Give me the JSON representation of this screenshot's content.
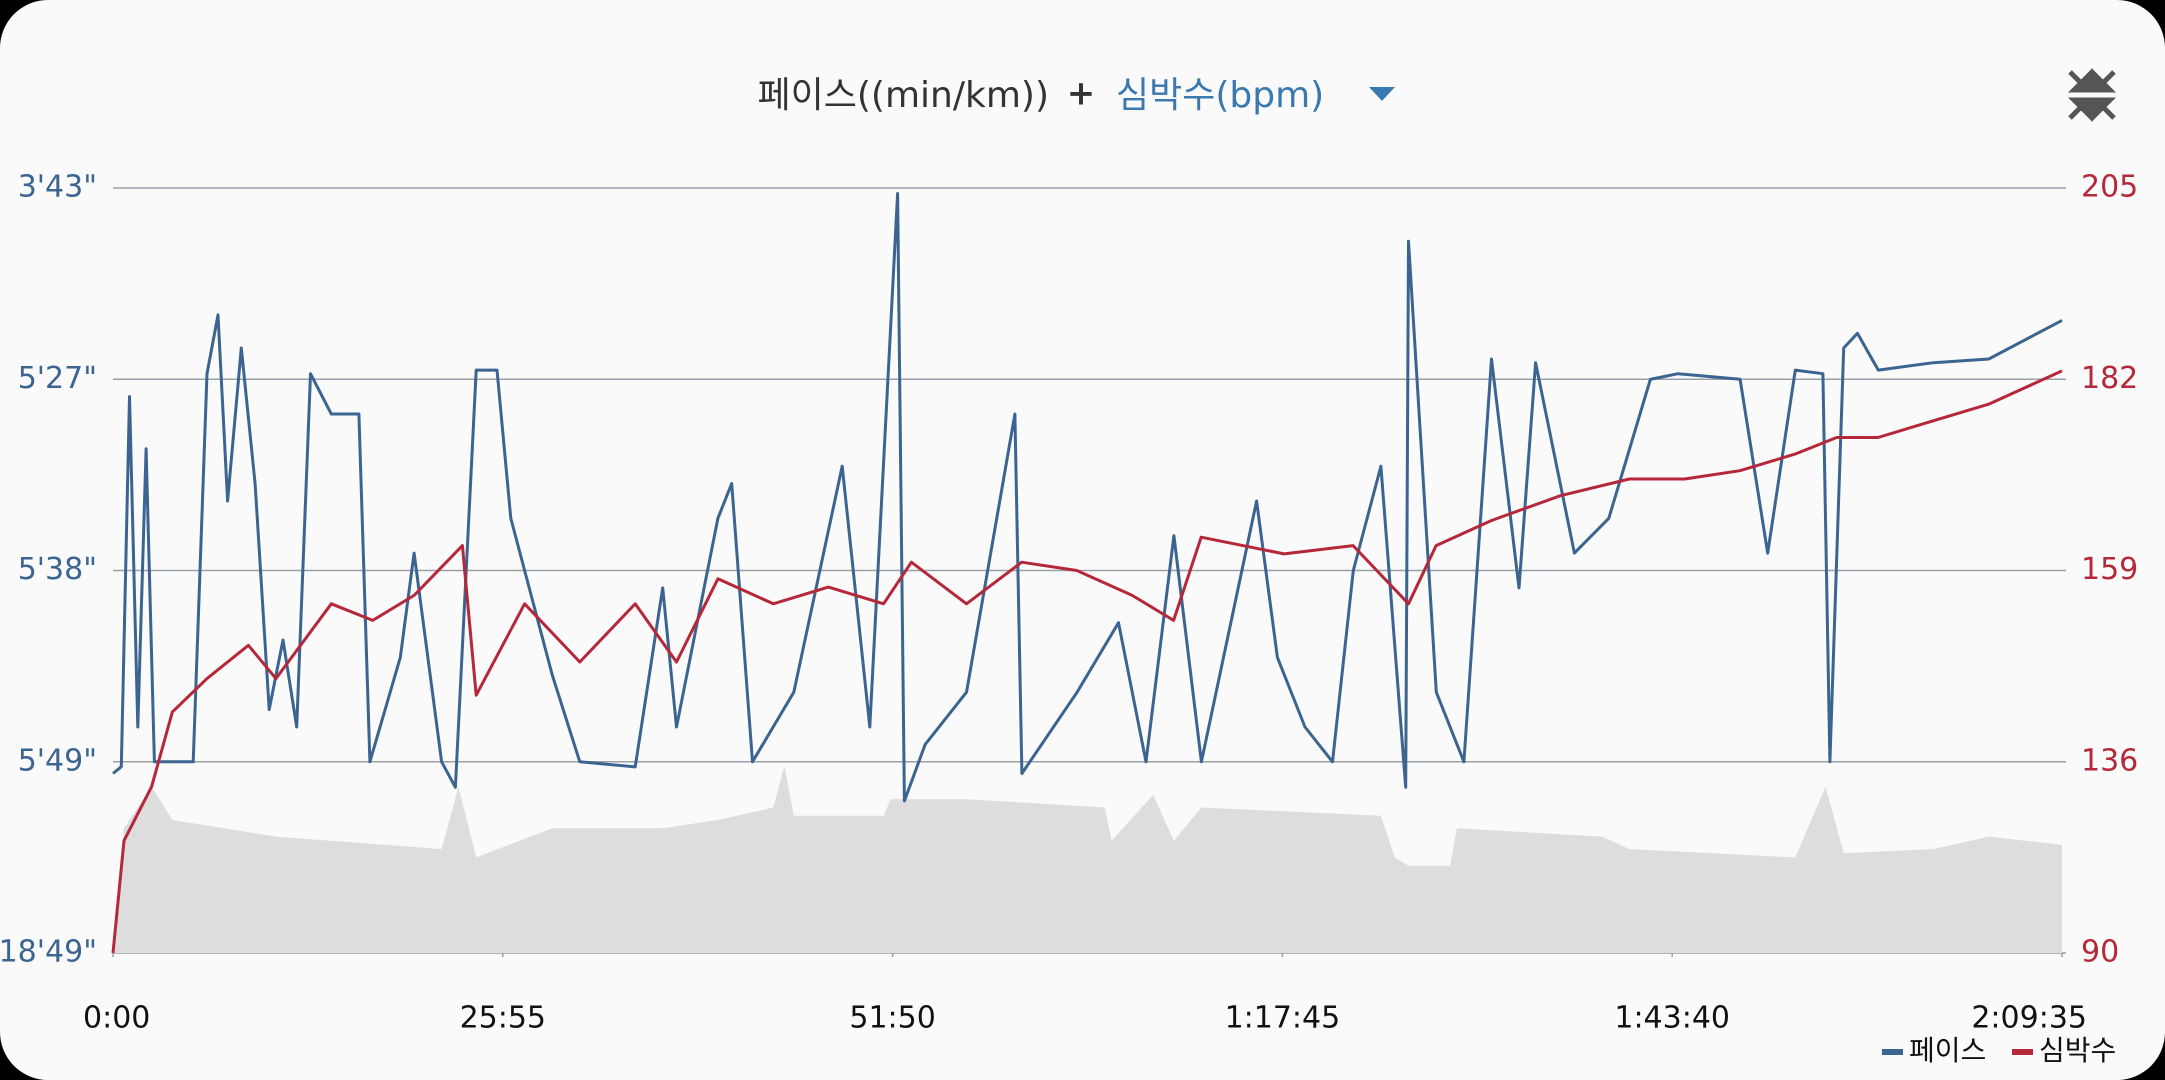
{
  "chart_data": {
    "type": "line",
    "title": "페이스((min/km))",
    "title_joiner": "+",
    "title_second": "심박수(bpm)",
    "x_range": [
      0,
      7775
    ],
    "xticks": [
      {
        "value": 0,
        "label": "0:00"
      },
      {
        "value": 1555,
        "label": "25:55"
      },
      {
        "value": 3110,
        "label": "51:50"
      },
      {
        "value": 4665,
        "label": "1:17:45"
      },
      {
        "value": 6220,
        "label": "1:43:40"
      },
      {
        "value": 7775,
        "label": "2:09:35"
      }
    ],
    "ylim": [
      1129,
      223
    ],
    "yticks": [
      {
        "value": 1129,
        "label": "18'49\""
      },
      {
        "value": 349,
        "label": "5'49\""
      },
      {
        "value": 338,
        "label": "5'38\""
      },
      {
        "value": 327,
        "label": "5'27\""
      },
      {
        "value": 223,
        "label": "3'43\""
      }
    ],
    "y2lim": [
      90,
      205
    ],
    "y2ticks": [
      90,
      136,
      159,
      182,
      205
    ],
    "grid": true,
    "legend": "bottom-right",
    "series": [
      {
        "name": "페이스",
        "color": "#3b6590",
        "x": [
          0,
          33,
          66,
          99,
          132,
          165,
          320,
          375,
          419,
          457,
          512,
          567,
          623,
          678,
          733,
          788,
          871,
          981,
          1025,
          1146,
          1201,
          1311,
          1366,
          1449,
          1532,
          1587,
          1752,
          1862,
          2083,
          2193,
          2248,
          2413,
          2468,
          2551,
          2716,
          2909,
          3019,
          3130,
          3157,
          3240,
          3405,
          3598,
          3626,
          3846,
          4011,
          4121,
          4232,
          4342,
          4562,
          4645,
          4755,
          4865,
          4948,
          5058,
          5157,
          5168,
          5279,
          5389,
          5499,
          5609,
          5675,
          5830,
          5967,
          6133,
          6243,
          6491,
          6601,
          6711,
          6821,
          6849,
          6904,
          6959,
          7042,
          7262,
          7483,
          7775
        ],
        "values": [
          397,
          369,
          328,
          347,
          331,
          349,
          349,
          324,
          292,
          334,
          310,
          333,
          346,
          342,
          347,
          324,
          329,
          329,
          349,
          343,
          337,
          349,
          453,
          322,
          322,
          335,
          344,
          349,
          370,
          339,
          347,
          335,
          333,
          349,
          345,
          332,
          347,
          226,
          509,
          348,
          345,
          329,
          397,
          345,
          341,
          349,
          336,
          349,
          334,
          343,
          347,
          349,
          338,
          332,
          453,
          252,
          345,
          349,
          316,
          339,
          318,
          337,
          335,
          327,
          324,
          327,
          337,
          322,
          324,
          349,
          310,
          302,
          322,
          318,
          316,
          295
        ]
      },
      {
        "name": "심박수",
        "color": "#b5283a",
        "axis": "y2",
        "x": [
          0,
          44,
          154,
          237,
          375,
          540,
          650,
          871,
          1036,
          1201,
          1394,
          1449,
          1642,
          1862,
          2083,
          2248,
          2413,
          2634,
          2854,
          3074,
          3185,
          3405,
          3625,
          3845,
          4066,
          4231,
          4341,
          4672,
          4947,
          5168,
          5278,
          5498,
          5774,
          6049,
          6270,
          6490,
          6710,
          6876,
          7041,
          7261,
          7482,
          7775
        ],
        "values": [
          90,
          117,
          130,
          142,
          146,
          150,
          146,
          155,
          153,
          156,
          162,
          144,
          155,
          148,
          155,
          148,
          158,
          155,
          157,
          155,
          160,
          155,
          160,
          159,
          156,
          153,
          163,
          161,
          162,
          155,
          162,
          165,
          168,
          170,
          170,
          171,
          173,
          175,
          175,
          177,
          179,
          183
        ]
      }
    ],
    "area": {
      "color": "#dddddd",
      "axis": "y2",
      "x": [
        0,
        44,
        154,
        237,
        650,
        1311,
        1378,
        1449,
        1752,
        2193,
        2413,
        2634,
        2678,
        2716,
        3075,
        3102,
        3405,
        3956,
        3984,
        4149,
        4232,
        4342,
        5058,
        5113,
        5168,
        5334,
        5361,
        5940,
        6050,
        6711,
        6832,
        6904,
        7262,
        7483,
        7775
      ],
      "values": [
        90,
        120,
        130,
        122,
        118,
        115,
        130,
        113,
        120,
        120,
        122,
        125,
        135,
        123,
        123,
        127,
        127,
        125,
        117,
        128,
        117,
        125,
        123,
        113,
        111,
        111,
        120,
        118,
        115,
        113,
        130,
        114,
        115,
        118,
        116
      ]
    }
  }
}
